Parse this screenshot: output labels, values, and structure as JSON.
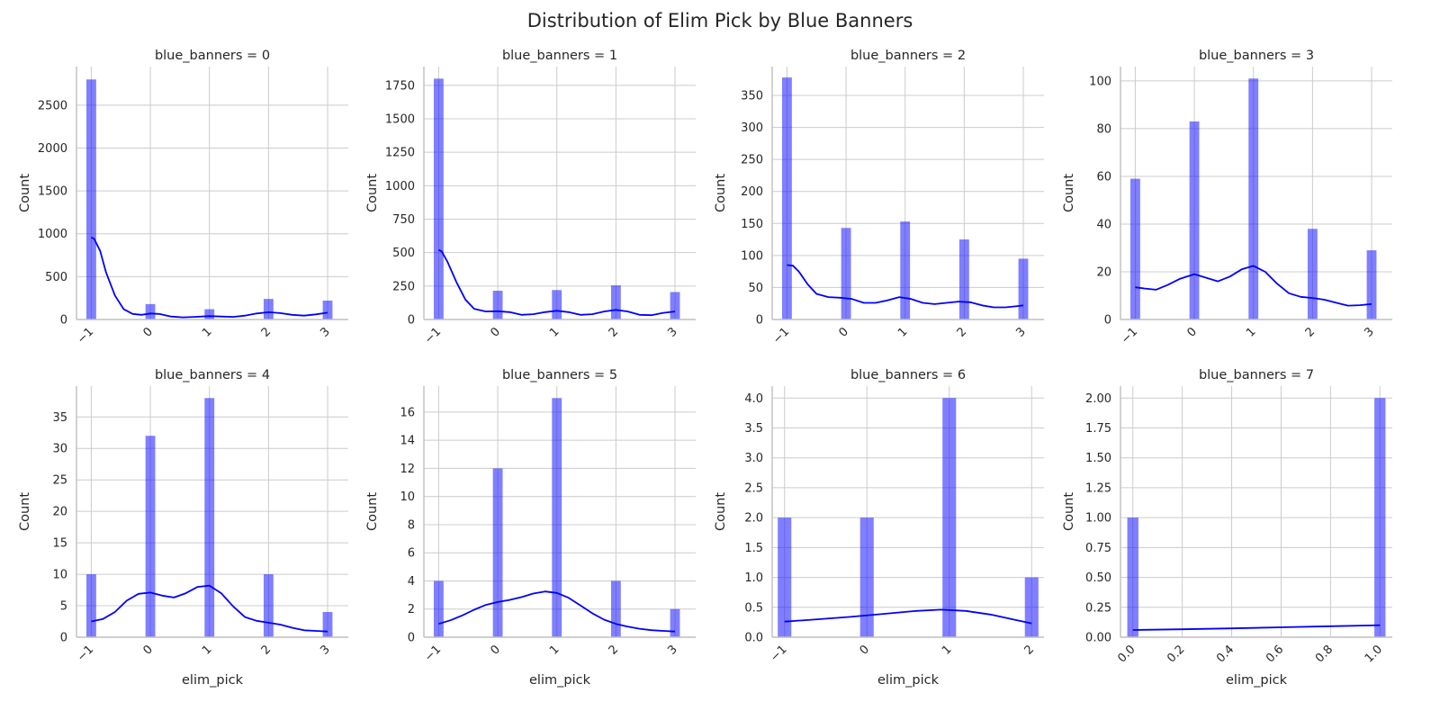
{
  "title": "Distribution of Elim Pick by Blue Banners",
  "colors": {
    "bar": "#0000ff",
    "bar_opacity": 0.5,
    "kde": "#0000ff",
    "grid": "#cccccc",
    "axis": "#bfbfbf"
  },
  "chart_data": [
    {
      "type": "bar",
      "title": "blue_banners = 0",
      "xlabel": "",
      "ylabel": "Count",
      "x": [
        -1,
        0,
        1,
        2,
        3
      ],
      "values": [
        2800,
        180,
        120,
        240,
        220
      ],
      "kde": [
        [
          -1,
          960
        ],
        [
          -0.95,
          940
        ],
        [
          -0.85,
          800
        ],
        [
          -0.75,
          550
        ],
        [
          -0.6,
          280
        ],
        [
          -0.45,
          120
        ],
        [
          -0.3,
          65
        ],
        [
          -0.15,
          55
        ],
        [
          0,
          70
        ],
        [
          0.15,
          65
        ],
        [
          0.35,
          35
        ],
        [
          0.55,
          25
        ],
        [
          0.75,
          30
        ],
        [
          1,
          40
        ],
        [
          1.2,
          35
        ],
        [
          1.4,
          30
        ],
        [
          1.6,
          45
        ],
        [
          1.8,
          70
        ],
        [
          2,
          85
        ],
        [
          2.2,
          75
        ],
        [
          2.4,
          55
        ],
        [
          2.6,
          45
        ],
        [
          2.8,
          60
        ],
        [
          3,
          80
        ]
      ],
      "xlim": [
        -1.25,
        3.35
      ],
      "ylim": [
        0,
        2950
      ],
      "yticks": [
        0,
        500,
        1000,
        1500,
        2000,
        2500
      ],
      "xtick_labels": [
        "−1",
        "0",
        "1",
        "2",
        "3"
      ],
      "xtick_values": [
        -1,
        0,
        1,
        2,
        3
      ]
    },
    {
      "type": "bar",
      "title": "blue_banners = 1",
      "xlabel": "",
      "ylabel": "Count",
      "x": [
        -1,
        0,
        1,
        2,
        3
      ],
      "values": [
        1800,
        215,
        220,
        255,
        205
      ],
      "kde": [
        [
          -1,
          520
        ],
        [
          -0.95,
          510
        ],
        [
          -0.85,
          430
        ],
        [
          -0.7,
          280
        ],
        [
          -0.55,
          150
        ],
        [
          -0.4,
          80
        ],
        [
          -0.2,
          60
        ],
        [
          0,
          62
        ],
        [
          0.2,
          55
        ],
        [
          0.4,
          35
        ],
        [
          0.6,
          40
        ],
        [
          0.8,
          55
        ],
        [
          1,
          65
        ],
        [
          1.2,
          55
        ],
        [
          1.4,
          35
        ],
        [
          1.6,
          40
        ],
        [
          1.8,
          60
        ],
        [
          2,
          72
        ],
        [
          2.2,
          60
        ],
        [
          2.4,
          35
        ],
        [
          2.6,
          32
        ],
        [
          2.8,
          50
        ],
        [
          3,
          60
        ]
      ],
      "xlim": [
        -1.25,
        3.35
      ],
      "ylim": [
        0,
        1890
      ],
      "yticks": [
        0,
        250,
        500,
        750,
        1000,
        1250,
        1500,
        1750
      ],
      "xtick_labels": [
        "−1",
        "0",
        "1",
        "2",
        "3"
      ],
      "xtick_values": [
        -1,
        0,
        1,
        2,
        3
      ]
    },
    {
      "type": "bar",
      "title": "blue_banners = 2",
      "xlabel": "",
      "ylabel": "Count",
      "x": [
        -1,
        0,
        1,
        2,
        3
      ],
      "values": [
        378,
        143,
        153,
        125,
        95
      ],
      "kde": [
        [
          -1,
          85
        ],
        [
          -0.9,
          84
        ],
        [
          -0.8,
          75
        ],
        [
          -0.65,
          55
        ],
        [
          -0.5,
          40
        ],
        [
          -0.3,
          35
        ],
        [
          -0.1,
          34
        ],
        [
          0.1,
          32
        ],
        [
          0.3,
          26
        ],
        [
          0.5,
          26
        ],
        [
          0.7,
          30
        ],
        [
          0.9,
          35
        ],
        [
          1.1,
          32
        ],
        [
          1.3,
          26
        ],
        [
          1.5,
          24
        ],
        [
          1.7,
          26
        ],
        [
          1.9,
          28
        ],
        [
          2.1,
          27
        ],
        [
          2.3,
          22
        ],
        [
          2.5,
          19
        ],
        [
          2.7,
          19
        ],
        [
          2.9,
          21
        ],
        [
          3,
          22
        ]
      ],
      "xlim": [
        -1.25,
        3.35
      ],
      "ylim": [
        0,
        395
      ],
      "yticks": [
        0,
        50,
        100,
        150,
        200,
        250,
        300,
        350
      ],
      "xtick_labels": [
        "−1",
        "0",
        "1",
        "2",
        "3"
      ],
      "xtick_values": [
        -1,
        0,
        1,
        2,
        3
      ]
    },
    {
      "type": "bar",
      "title": "blue_banners = 3",
      "xlabel": "",
      "ylabel": "Count",
      "x": [
        -1,
        0,
        1,
        2,
        3
      ],
      "values": [
        59,
        83,
        101,
        38,
        29
      ],
      "kde": [
        [
          -1,
          13.5
        ],
        [
          -0.85,
          13
        ],
        [
          -0.65,
          12.5
        ],
        [
          -0.45,
          14.5
        ],
        [
          -0.25,
          17
        ],
        [
          0,
          19
        ],
        [
          0.2,
          17.5
        ],
        [
          0.4,
          16
        ],
        [
          0.6,
          18
        ],
        [
          0.8,
          21
        ],
        [
          1,
          22.5
        ],
        [
          1.2,
          20
        ],
        [
          1.4,
          15
        ],
        [
          1.6,
          11
        ],
        [
          1.8,
          9.5
        ],
        [
          2,
          9
        ],
        [
          2.2,
          8.3
        ],
        [
          2.4,
          7
        ],
        [
          2.6,
          5.8
        ],
        [
          2.8,
          6
        ],
        [
          3,
          6.5
        ]
      ],
      "xlim": [
        -1.25,
        3.35
      ],
      "ylim": [
        0,
        106
      ],
      "yticks": [
        0,
        20,
        40,
        60,
        80,
        100
      ],
      "xtick_labels": [
        "−1",
        "0",
        "1",
        "2",
        "3"
      ],
      "xtick_values": [
        -1,
        0,
        1,
        2,
        3
      ]
    },
    {
      "type": "bar",
      "title": "blue_banners = 4",
      "xlabel": "elim_pick",
      "ylabel": "Count",
      "x": [
        -1,
        0,
        1,
        2,
        3
      ],
      "values": [
        10,
        32,
        38,
        10,
        4
      ],
      "kde": [
        [
          -1,
          2.5
        ],
        [
          -0.8,
          2.9
        ],
        [
          -0.6,
          4
        ],
        [
          -0.4,
          5.8
        ],
        [
          -0.2,
          6.9
        ],
        [
          0,
          7.1
        ],
        [
          0.2,
          6.6
        ],
        [
          0.4,
          6.3
        ],
        [
          0.6,
          7
        ],
        [
          0.8,
          8
        ],
        [
          1,
          8.2
        ],
        [
          1.2,
          7
        ],
        [
          1.4,
          4.9
        ],
        [
          1.6,
          3.2
        ],
        [
          1.8,
          2.6
        ],
        [
          2,
          2.3
        ],
        [
          2.2,
          2
        ],
        [
          2.4,
          1.5
        ],
        [
          2.6,
          1.1
        ],
        [
          2.8,
          1
        ],
        [
          3,
          0.9
        ]
      ],
      "xlim": [
        -1.25,
        3.35
      ],
      "ylim": [
        0,
        39.9
      ],
      "yticks": [
        0,
        5,
        10,
        15,
        20,
        25,
        30,
        35
      ],
      "xtick_labels": [
        "−1",
        "0",
        "1",
        "2",
        "3"
      ],
      "xtick_values": [
        -1,
        0,
        1,
        2,
        3
      ]
    },
    {
      "type": "bar",
      "title": "blue_banners = 5",
      "xlabel": "elim_pick",
      "ylabel": "Count",
      "x": [
        -1,
        0,
        1,
        2,
        3
      ],
      "values": [
        4,
        12,
        17,
        4,
        2
      ],
      "kde": [
        [
          -1,
          0.95
        ],
        [
          -0.8,
          1.2
        ],
        [
          -0.6,
          1.55
        ],
        [
          -0.4,
          1.95
        ],
        [
          -0.2,
          2.3
        ],
        [
          0,
          2.5
        ],
        [
          0.2,
          2.65
        ],
        [
          0.4,
          2.85
        ],
        [
          0.6,
          3.1
        ],
        [
          0.8,
          3.25
        ],
        [
          1,
          3.15
        ],
        [
          1.2,
          2.8
        ],
        [
          1.4,
          2.25
        ],
        [
          1.6,
          1.7
        ],
        [
          1.8,
          1.25
        ],
        [
          2,
          0.95
        ],
        [
          2.2,
          0.75
        ],
        [
          2.4,
          0.6
        ],
        [
          2.6,
          0.5
        ],
        [
          2.8,
          0.45
        ],
        [
          3,
          0.4
        ]
      ],
      "xlim": [
        -1.25,
        3.35
      ],
      "ylim": [
        0,
        17.85
      ],
      "yticks": [
        0,
        2,
        4,
        6,
        8,
        10,
        12,
        14,
        16
      ],
      "xtick_labels": [
        "−1",
        "0",
        "1",
        "2",
        "3"
      ],
      "xtick_values": [
        -1,
        0,
        1,
        2,
        3
      ]
    },
    {
      "type": "bar",
      "title": "blue_banners = 6",
      "xlabel": "elim_pick",
      "ylabel": "Count",
      "x": [
        -1,
        0,
        1,
        2
      ],
      "values": [
        2,
        2,
        4,
        1
      ],
      "kde": [
        [
          -1,
          0.26
        ],
        [
          -0.6,
          0.3
        ],
        [
          -0.2,
          0.34
        ],
        [
          0.2,
          0.39
        ],
        [
          0.6,
          0.44
        ],
        [
          0.9,
          0.46
        ],
        [
          1.2,
          0.44
        ],
        [
          1.5,
          0.38
        ],
        [
          1.8,
          0.29
        ],
        [
          2,
          0.23
        ]
      ],
      "xlim": [
        -1.15,
        2.15
      ],
      "ylim": [
        0,
        4.2
      ],
      "yticks": [
        0,
        0.5,
        1,
        1.5,
        2,
        2.5,
        3,
        3.5,
        4
      ],
      "ytick_labels": [
        "0.0",
        "0.5",
        "1.0",
        "1.5",
        "2.0",
        "2.5",
        "3.0",
        "3.5",
        "4.0"
      ],
      "xtick_labels": [
        "−1",
        "0",
        "1",
        "2"
      ],
      "xtick_values": [
        -1,
        0,
        1,
        2
      ]
    },
    {
      "type": "bar",
      "title": "blue_banners = 7",
      "xlabel": "elim_pick",
      "ylabel": "Count",
      "x": [
        0,
        1
      ],
      "values": [
        1,
        2
      ],
      "kde": [
        [
          0,
          0.06
        ],
        [
          0.2,
          0.066
        ],
        [
          0.4,
          0.074
        ],
        [
          0.6,
          0.083
        ],
        [
          0.8,
          0.092
        ],
        [
          1,
          0.1
        ]
      ],
      "xlim": [
        -0.05,
        1.05
      ],
      "ylim": [
        0,
        2.1
      ],
      "yticks": [
        0,
        0.25,
        0.5,
        0.75,
        1,
        1.25,
        1.5,
        1.75,
        2
      ],
      "ytick_labels": [
        "0.00",
        "0.25",
        "0.50",
        "0.75",
        "1.00",
        "1.25",
        "1.50",
        "1.75",
        "2.00"
      ],
      "xtick_labels": [
        "0.0",
        "0.2",
        "0.4",
        "0.6",
        "0.8",
        "1.0"
      ],
      "xtick_values": [
        0,
        0.2,
        0.4,
        0.6,
        0.8,
        1
      ],
      "bar_width": 0.045
    }
  ]
}
